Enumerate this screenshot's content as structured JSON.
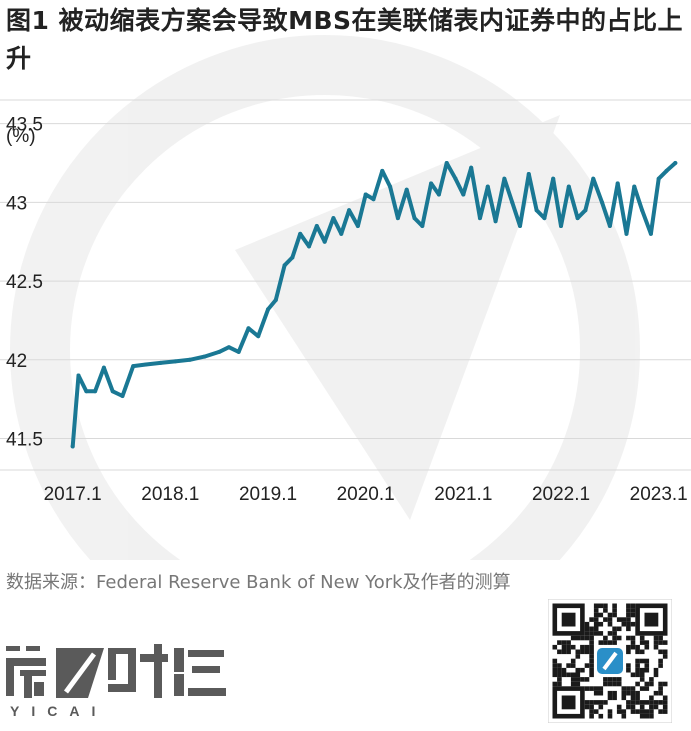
{
  "title": "图1 被动缩表方案会导致MBS在美联储表内证券中的占比上升",
  "source": "数据来源：Federal Reserve Bank of New York及作者的测算",
  "brand": {
    "name_cn": "第一财经",
    "name_en": "YICAI"
  },
  "colors": {
    "line": "#1a7894",
    "grid": "#d9d9d9",
    "text": "#222222",
    "source": "#777777",
    "logo_gray": "#5a5a5a"
  },
  "chart_data": {
    "type": "line",
    "ylabel": "(%)",
    "ylim": [
      41.3,
      43.65
    ],
    "yticks": [
      {
        "value": 41.5,
        "label": "41.5"
      },
      {
        "value": 42,
        "label": "42"
      },
      {
        "value": 42.5,
        "label": "42.5"
      },
      {
        "value": 43,
        "label": "43"
      },
      {
        "value": 43.5,
        "label": "43.5"
      }
    ],
    "xlim": [
      2016.85,
      2023.3
    ],
    "xticks": [
      {
        "value": 2017.0,
        "label": "2017.1"
      },
      {
        "value": 2018.0,
        "label": "2018.1"
      },
      {
        "value": 2019.0,
        "label": "2019.1"
      },
      {
        "value": 2020.0,
        "label": "2020.1"
      },
      {
        "value": 2021.0,
        "label": "2021.1"
      },
      {
        "value": 2022.0,
        "label": "2022.1"
      },
      {
        "value": 2023.0,
        "label": "2023.1"
      }
    ],
    "grid": true,
    "x": [
      2017.0,
      2017.06,
      2017.14,
      2017.23,
      2017.32,
      2017.41,
      2017.51,
      2017.62,
      2017.75,
      2017.9,
      2018.05,
      2018.2,
      2018.35,
      2018.5,
      2018.6,
      2018.7,
      2018.8,
      2018.9,
      2019.0,
      2019.08,
      2019.17,
      2019.25,
      2019.33,
      2019.42,
      2019.5,
      2019.58,
      2019.67,
      2019.75,
      2019.83,
      2019.92,
      2020.0,
      2020.08,
      2020.17,
      2020.25,
      2020.33,
      2020.42,
      2020.5,
      2020.58,
      2020.67,
      2020.75,
      2020.83,
      2020.92,
      2021.0,
      2021.08,
      2021.17,
      2021.25,
      2021.33,
      2021.42,
      2021.5,
      2021.58,
      2021.67,
      2021.75,
      2021.83,
      2021.92,
      2022.0,
      2022.08,
      2022.17,
      2022.25,
      2022.33,
      2022.42,
      2022.5,
      2022.58,
      2022.67,
      2022.75,
      2022.83,
      2022.92,
      2023.0,
      2023.08,
      2023.17
    ],
    "series": [
      {
        "values": [
          41.45,
          41.9,
          41.8,
          41.8,
          41.95,
          41.8,
          41.77,
          41.96,
          41.97,
          41.98,
          41.99,
          42.0,
          42.02,
          42.05,
          42.08,
          42.05,
          42.2,
          42.15,
          42.32,
          42.38,
          42.6,
          42.65,
          42.8,
          42.72,
          42.85,
          42.75,
          42.9,
          42.8,
          42.95,
          42.85,
          43.05,
          43.02,
          43.2,
          43.1,
          42.9,
          43.08,
          42.9,
          42.85,
          43.12,
          43.05,
          43.25,
          43.15,
          43.05,
          43.22,
          42.9,
          43.1,
          42.88,
          43.15,
          43.0,
          42.85,
          43.18,
          42.95,
          42.9,
          43.15,
          42.85,
          43.1,
          42.9,
          42.95,
          43.15,
          43.0,
          42.85,
          43.12,
          42.8,
          43.1,
          42.95,
          42.8,
          43.15,
          43.2,
          43.25
        ]
      }
    ]
  }
}
